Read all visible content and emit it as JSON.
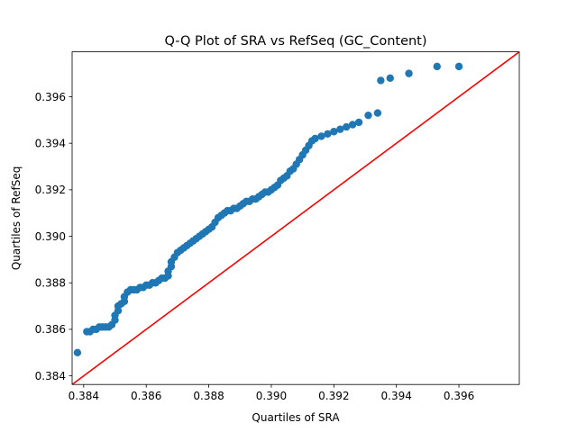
{
  "chart_data": {
    "type": "scatter",
    "title": "Q-Q Plot of SRA vs RefSeq (GC_Content)",
    "xlabel": "Quartiles of SRA",
    "ylabel": "Quartiles of RefSeq",
    "xlim": [
      0.38363,
      0.39793
    ],
    "ylim": [
      0.38363,
      0.39793
    ],
    "xticks": [
      "0.384",
      "0.386",
      "0.388",
      "0.390",
      "0.392",
      "0.394",
      "0.396"
    ],
    "yticks": [
      "0.384",
      "0.386",
      "0.388",
      "0.390",
      "0.392",
      "0.394",
      "0.396"
    ],
    "grid": false,
    "reference_line": {
      "slope": 1,
      "intercept": 0,
      "color": "#ff0000"
    },
    "colors": {
      "points": "#1f77b4",
      "line": "#ff0000"
    },
    "points": [
      [
        0.3838,
        0.385
      ],
      [
        0.3841,
        0.3859
      ],
      [
        0.3842,
        0.3859
      ],
      [
        0.3843,
        0.386
      ],
      [
        0.3844,
        0.386
      ],
      [
        0.3845,
        0.3861
      ],
      [
        0.3846,
        0.3861
      ],
      [
        0.3847,
        0.3861
      ],
      [
        0.3848,
        0.3861
      ],
      [
        0.3849,
        0.3862
      ],
      [
        0.385,
        0.3864
      ],
      [
        0.385,
        0.3866
      ],
      [
        0.3851,
        0.3868
      ],
      [
        0.3851,
        0.387
      ],
      [
        0.3852,
        0.3871
      ],
      [
        0.3853,
        0.3872
      ],
      [
        0.3853,
        0.3874
      ],
      [
        0.3854,
        0.3876
      ],
      [
        0.3855,
        0.3877
      ],
      [
        0.3856,
        0.3877
      ],
      [
        0.3857,
        0.3877
      ],
      [
        0.3858,
        0.3878
      ],
      [
        0.3859,
        0.3878
      ],
      [
        0.386,
        0.3879
      ],
      [
        0.3861,
        0.3879
      ],
      [
        0.3862,
        0.388
      ],
      [
        0.3863,
        0.388
      ],
      [
        0.3864,
        0.3881
      ],
      [
        0.3865,
        0.3882
      ],
      [
        0.3866,
        0.3882
      ],
      [
        0.3867,
        0.3883
      ],
      [
        0.3867,
        0.3885
      ],
      [
        0.3868,
        0.3887
      ],
      [
        0.3868,
        0.3889
      ],
      [
        0.3869,
        0.3891
      ],
      [
        0.387,
        0.3893
      ],
      [
        0.3871,
        0.3894
      ],
      [
        0.3872,
        0.3895
      ],
      [
        0.3873,
        0.3896
      ],
      [
        0.3874,
        0.3897
      ],
      [
        0.3875,
        0.3898
      ],
      [
        0.3876,
        0.3899
      ],
      [
        0.3877,
        0.39
      ],
      [
        0.3878,
        0.3901
      ],
      [
        0.3879,
        0.3902
      ],
      [
        0.388,
        0.3903
      ],
      [
        0.3881,
        0.3904
      ],
      [
        0.3882,
        0.3906
      ],
      [
        0.3883,
        0.3908
      ],
      [
        0.3884,
        0.3909
      ],
      [
        0.3885,
        0.391
      ],
      [
        0.3886,
        0.3911
      ],
      [
        0.3887,
        0.3911
      ],
      [
        0.3888,
        0.3912
      ],
      [
        0.3889,
        0.3912
      ],
      [
        0.389,
        0.3913
      ],
      [
        0.3891,
        0.3914
      ],
      [
        0.3892,
        0.3915
      ],
      [
        0.3893,
        0.3915
      ],
      [
        0.3894,
        0.3916
      ],
      [
        0.3895,
        0.3916
      ],
      [
        0.3896,
        0.3917
      ],
      [
        0.3897,
        0.3918
      ],
      [
        0.3898,
        0.3919
      ],
      [
        0.3899,
        0.3919
      ],
      [
        0.39,
        0.392
      ],
      [
        0.3901,
        0.3921
      ],
      [
        0.3902,
        0.3922
      ],
      [
        0.3903,
        0.3924
      ],
      [
        0.3904,
        0.3925
      ],
      [
        0.3905,
        0.3926
      ],
      [
        0.3906,
        0.3928
      ],
      [
        0.3907,
        0.3929
      ],
      [
        0.3908,
        0.3931
      ],
      [
        0.3909,
        0.3933
      ],
      [
        0.391,
        0.3935
      ],
      [
        0.3911,
        0.3937
      ],
      [
        0.3912,
        0.3939
      ],
      [
        0.3913,
        0.3941
      ],
      [
        0.3914,
        0.3942
      ],
      [
        0.3916,
        0.3943
      ],
      [
        0.3918,
        0.3944
      ],
      [
        0.392,
        0.3945
      ],
      [
        0.3922,
        0.3946
      ],
      [
        0.3924,
        0.3947
      ],
      [
        0.3926,
        0.3948
      ],
      [
        0.3928,
        0.3949
      ],
      [
        0.3931,
        0.3952
      ],
      [
        0.3934,
        0.3953
      ],
      [
        0.3935,
        0.3967
      ],
      [
        0.3938,
        0.3968
      ],
      [
        0.3944,
        0.397
      ],
      [
        0.3953,
        0.3973
      ],
      [
        0.396,
        0.3973
      ]
    ]
  }
}
